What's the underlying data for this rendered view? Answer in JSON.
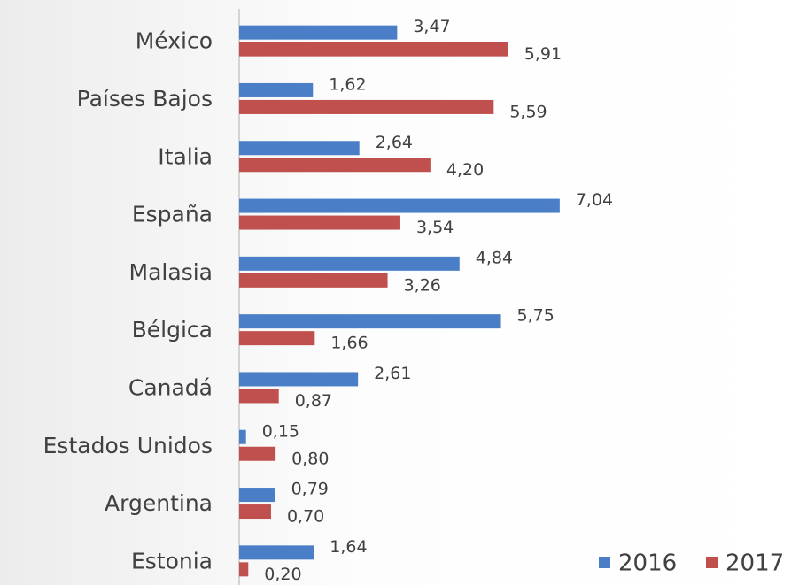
{
  "chart_data": {
    "type": "barh",
    "categories": [
      "México",
      "Países Bajos",
      "Italia",
      "España",
      "Malasia",
      "Bélgica",
      "Canadá",
      "Estados Unidos",
      "Argentina",
      "Estonia"
    ],
    "series": [
      {
        "name": "2016",
        "color": "#4a7fc8",
        "values": [
          3.47,
          1.62,
          2.64,
          7.04,
          4.84,
          5.75,
          2.61,
          0.15,
          0.79,
          1.64
        ],
        "value_labels": [
          "3,47",
          "1,62",
          "2,64",
          "7,04",
          "4,84",
          "5,75",
          "2,61",
          "0,15",
          "0,79",
          "1,64"
        ]
      },
      {
        "name": "2017",
        "color": "#c0504d",
        "values": [
          5.91,
          5.59,
          4.2,
          3.54,
          3.26,
          1.66,
          0.87,
          0.8,
          0.7,
          0.2
        ],
        "value_labels": [
          "5,91",
          "5,59",
          "4,20",
          "3,54",
          "3,26",
          "1,66",
          "0,87",
          "0,80",
          "0,70",
          "0,20"
        ]
      }
    ],
    "xlim": [
      0,
      8
    ],
    "legend": "bottom-right"
  }
}
